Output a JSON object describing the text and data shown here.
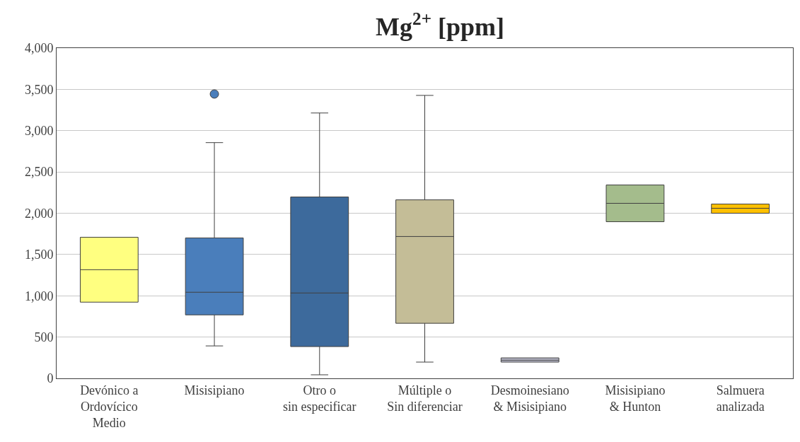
{
  "chart_data": {
    "type": "box",
    "title": "Mg$^{2+}$ [ppm]",
    "categories": [
      "Devónico a\nOrdovícico\nMedio",
      "Misisipiano",
      "Otro o\nsin especificar",
      "Múltiple o\nSin diferenciar",
      "Desmoinesiano\n& Misisipiano",
      "Misisipiano\n& Hunton",
      "Salmuera\nanalizada"
    ],
    "boxes": [
      {
        "low": 923,
        "q1": 923,
        "median": 1316,
        "q3": 1709,
        "high": 1709
      },
      {
        "low": 393,
        "q1": 769,
        "median": 1043,
        "q3": 1701,
        "high": 2855,
        "outliers": [
          3444
        ]
      },
      {
        "low": 43,
        "q1": 385,
        "median": 1034,
        "q3": 2197,
        "high": 3214
      },
      {
        "low": 197,
        "q1": 667,
        "median": 1718,
        "q3": 2162,
        "high": 3427
      },
      {
        "low": 197,
        "q1": 197,
        "median": 220,
        "q3": 248,
        "high": 248
      },
      {
        "low": 1897,
        "q1": 1897,
        "median": 2120,
        "q3": 2342,
        "high": 2342
      },
      {
        "low": 2000,
        "q1": 2000,
        "median": 2060,
        "q3": 2111,
        "high": 2111
      }
    ],
    "colors": [
      "#ffff80",
      "#4a7ebb",
      "#3d6a9c",
      "#c4bd97",
      "#b8b8c8",
      "#a4bc8c",
      "#ffc000"
    ],
    "ylim": [
      0,
      4000
    ],
    "yticks": [
      0,
      500,
      {
        "value": 1000,
        "label": "1,000"
      },
      {
        "value": 1500,
        "label": "1,500"
      },
      {
        "value": 2000,
        "label": "2,000"
      },
      {
        "value": 2500,
        "label": "2,500"
      },
      {
        "value": 3000,
        "label": "3,000"
      },
      {
        "value": 3500,
        "label": "3,500"
      },
      {
        "value": 4000,
        "label": "4,000"
      }
    ],
    "grid": "y",
    "marker": "circle"
  }
}
